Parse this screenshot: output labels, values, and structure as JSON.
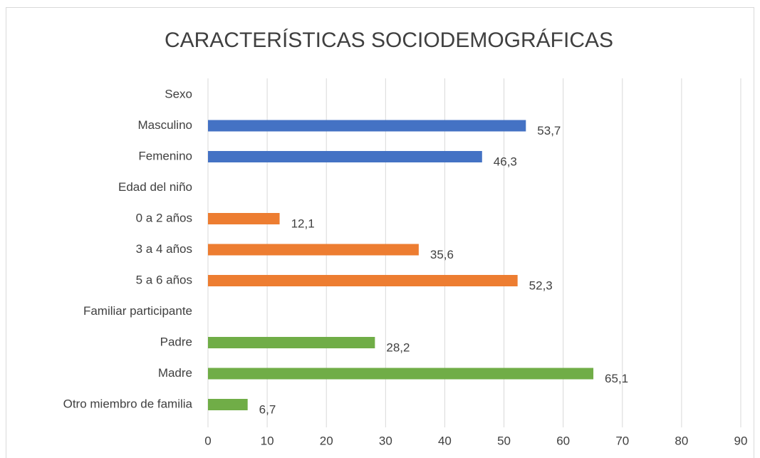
{
  "chart_data": {
    "type": "barh",
    "title": "CARACTERÍSTICAS SOCIODEMOGRÁFICAS",
    "categories": [
      "Sexo",
      "Masculino",
      "Femenino",
      "Edad del niño",
      "0 a 2 años",
      "3 a 4 años",
      "5 a 6 años",
      "Familiar participante",
      "Padre",
      "Madre",
      "Otro miembro de familia"
    ],
    "values": [
      null,
      53.7,
      46.3,
      null,
      12.1,
      35.6,
      52.3,
      null,
      28.2,
      65.1,
      6.7
    ],
    "value_labels": [
      null,
      "53,7",
      "46,3",
      null,
      "12,1",
      "35,6",
      "52,3",
      null,
      "28,2",
      "65,1",
      "6,7"
    ],
    "colors": [
      null,
      "#4472c4",
      "#4472c4",
      null,
      "#ed7d31",
      "#ed7d31",
      "#ed7d31",
      null,
      "#70ad47",
      "#70ad47",
      "#70ad47"
    ],
    "xlim": [
      0,
      90
    ],
    "xticks": [
      0,
      10,
      20,
      30,
      40,
      50,
      60,
      70,
      80,
      90
    ],
    "grid": true
  }
}
